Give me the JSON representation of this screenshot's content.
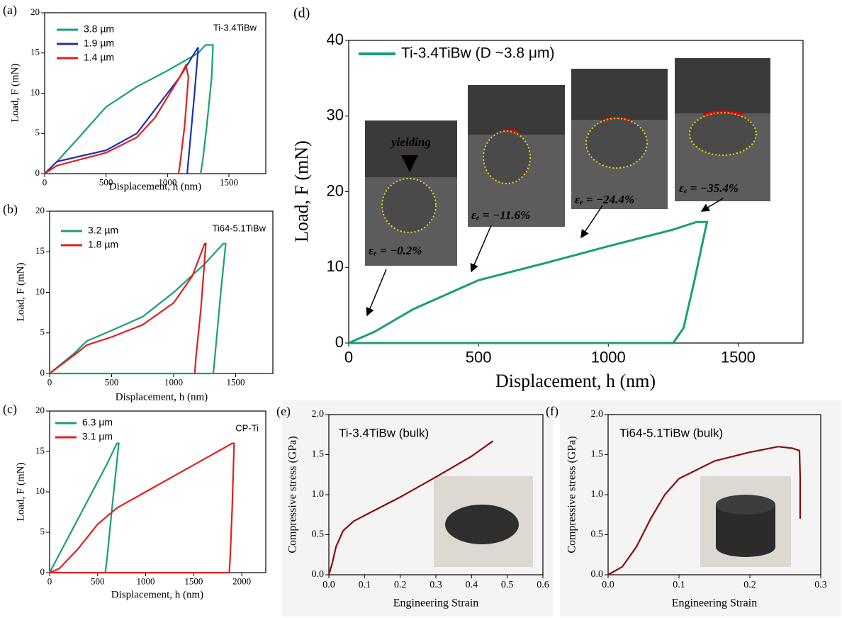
{
  "chart_data": [
    {
      "type": "line",
      "label": "(a)",
      "title": "Ti-3.4TiBw",
      "xlabel": "Displacement, h (nm)",
      "ylabel": "Load, F (mN)",
      "xlim": [
        0,
        1800
      ],
      "ylim": [
        0,
        20
      ],
      "xticks": [
        0,
        500,
        1000,
        1500
      ],
      "yticks": [
        0,
        5,
        10,
        15,
        20
      ],
      "series": [
        {
          "name": "3.8 µm",
          "color": "#1a9e78",
          "x": [
            0,
            100,
            250,
            500,
            750,
            1000,
            1250,
            1310,
            1370,
            1360,
            1320,
            1290,
            1270
          ],
          "values": [
            0,
            1.5,
            4,
            8.3,
            10.8,
            12.8,
            15,
            16,
            16,
            12,
            6,
            2,
            0
          ]
        },
        {
          "name": "1.9 µm",
          "color": "#1f2fb5",
          "x": [
            0,
            100,
            300,
            500,
            750,
            900,
            1000,
            1100,
            1200,
            1245,
            1250,
            1220,
            1190,
            1160
          ],
          "values": [
            0,
            1.5,
            2.2,
            2.9,
            5,
            8,
            10,
            12,
            14.5,
            15.6,
            15.6,
            10,
            5,
            0
          ]
        },
        {
          "name": "1.4 µm",
          "color": "#e02020",
          "x": [
            0,
            100,
            300,
            500,
            750,
            900,
            1000,
            1100,
            1150,
            1170,
            1140,
            1100,
            1090
          ],
          "values": [
            0,
            1,
            1.8,
            2.6,
            4.5,
            7,
            9.5,
            12,
            13.5,
            12,
            6,
            1,
            0
          ]
        }
      ]
    },
    {
      "type": "line",
      "label": "(b)",
      "title": "Ti64-5.1TiBw",
      "xlabel": "Displacement, h (nm)",
      "ylabel": "Load, F (mN)",
      "xlim": [
        0,
        1800
      ],
      "ylim": [
        0,
        20
      ],
      "xticks": [
        0,
        500,
        1000,
        1500
      ],
      "yticks": [
        0,
        5,
        10,
        15,
        20
      ],
      "series": [
        {
          "name": "3.2 µm",
          "color": "#1a9e78",
          "x": [
            0,
            200,
            300,
            500,
            750,
            1000,
            1250,
            1400,
            1420,
            1380,
            1350,
            1320,
            0
          ],
          "values": [
            0,
            2.5,
            4,
            5.3,
            7,
            10,
            13.5,
            16,
            16,
            10,
            5,
            0,
            0
          ]
        },
        {
          "name": "1.8 µm",
          "color": "#e02020",
          "x": [
            0,
            200,
            300,
            500,
            750,
            1000,
            1150,
            1250,
            1260,
            1220,
            1180,
            1170
          ],
          "values": [
            0,
            2.3,
            3.5,
            4.5,
            6,
            8.7,
            12,
            16,
            16,
            8,
            2,
            0
          ]
        }
      ]
    },
    {
      "type": "line",
      "label": "(c)",
      "title": "CP-Ti",
      "xlabel": "Displacement, h (nm)",
      "ylabel": "Load, F (mN)",
      "xlim": [
        0,
        2250
      ],
      "ylim": [
        0,
        20
      ],
      "xticks": [
        0,
        500,
        1000,
        1500,
        2000
      ],
      "yticks": [
        0,
        5,
        10,
        15,
        20
      ],
      "series": [
        {
          "name": "6.3 µm",
          "color": "#1a9e78",
          "x": [
            0,
            200,
            400,
            600,
            700,
            720,
            650,
            600,
            580
          ],
          "values": [
            0,
            4.5,
            9,
            13.5,
            16,
            16,
            8,
            2,
            0
          ]
        },
        {
          "name": "3.1 µm",
          "color": "#e02020",
          "x": [
            0,
            100,
            300,
            500,
            700,
            1000,
            1300,
            1600,
            1900,
            1920,
            1900,
            1880,
            1870,
            0
          ],
          "values": [
            0,
            0.5,
            3,
            6,
            8,
            10,
            12,
            14,
            16,
            16,
            8,
            2,
            0,
            0
          ]
        }
      ]
    },
    {
      "type": "line",
      "label": "(d)",
      "xlabel": "Displacement, h (nm)",
      "ylabel": "Load, F (mN)",
      "xlim": [
        0,
        1750
      ],
      "ylim": [
        0,
        40
      ],
      "xticks": [
        0,
        500,
        1000,
        1500
      ],
      "yticks": [
        0,
        10,
        20,
        30,
        40
      ],
      "annotations": [
        "yielding",
        "εₑ = −0.2%",
        "εₑ = −11.6%",
        "εₑ = −24.4%",
        "εₑ = −35.4%"
      ],
      "series": [
        {
          "name": "Ti-3.4TiBw (D ~3.8 μm)",
          "color": "#1a9e78",
          "x": [
            0,
            100,
            250,
            500,
            750,
            1000,
            1250,
            1340,
            1380,
            1330,
            1290,
            1250,
            0
          ],
          "values": [
            0,
            1.5,
            4.5,
            8.3,
            10.5,
            12.8,
            15,
            16,
            16,
            8,
            2,
            0,
            0
          ]
        }
      ]
    },
    {
      "type": "line",
      "label": "(e)",
      "title": "Ti-3.4TiBw (bulk)",
      "xlabel": "Engineering Strain",
      "ylabel": "Compressive stress (GPa)",
      "xlim": [
        0,
        0.6
      ],
      "ylim": [
        0,
        2
      ],
      "xticks": [
        {
          "value": 0,
          "label": "0.0"
        },
        0.1,
        0.2,
        0.3,
        0.4,
        0.5,
        0.6
      ],
      "yticks": [
        {
          "value": 0,
          "label": "0.0"
        },
        0.5,
        {
          "value": 1,
          "label": "1.0"
        },
        1.5,
        {
          "value": 2,
          "label": "2.0"
        }
      ],
      "series": [
        {
          "color": "#8b0a0a",
          "x": [
            0,
            0.01,
            0.02,
            0.04,
            0.07,
            0.1,
            0.2,
            0.3,
            0.4,
            0.46
          ],
          "values": [
            0,
            0.15,
            0.35,
            0.55,
            0.67,
            0.74,
            0.97,
            1.22,
            1.48,
            1.67
          ]
        }
      ]
    },
    {
      "type": "line",
      "label": "(f)",
      "title": "Ti64-5.1TiBw (bulk)",
      "xlabel": "Engineering Strain",
      "ylabel": "Compressive stress (GPa)",
      "xlim": [
        0,
        0.3
      ],
      "ylim": [
        0,
        2
      ],
      "xticks": [
        {
          "value": 0,
          "label": "0.0"
        },
        0.1,
        0.2,
        0.3
      ],
      "yticks": [
        {
          "value": 0,
          "label": "0.0"
        },
        0.5,
        {
          "value": 1,
          "label": "1.0"
        },
        1.5,
        {
          "value": 2,
          "label": "2.0"
        }
      ],
      "series": [
        {
          "color": "#8b0a0a",
          "x": [
            0,
            0.02,
            0.04,
            0.06,
            0.08,
            0.1,
            0.15,
            0.2,
            0.24,
            0.26,
            0.27,
            0.271,
            0.271
          ],
          "values": [
            0,
            0.1,
            0.35,
            0.7,
            1.0,
            1.2,
            1.42,
            1.53,
            1.6,
            1.58,
            1.55,
            1.2,
            0.7
          ]
        }
      ]
    }
  ]
}
